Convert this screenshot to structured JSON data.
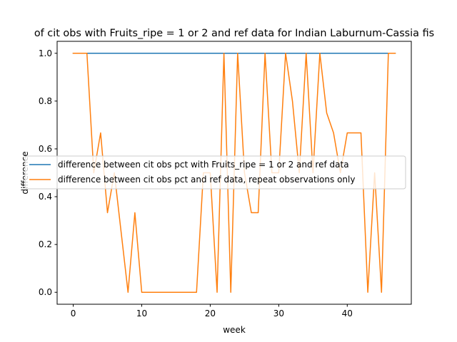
{
  "chart_data": {
    "type": "line",
    "title": "of cit obs with Fruits_ripe = 1 or 2 and ref data for Indian Laburnum-Cassia fis",
    "xlabel": "week",
    "ylabel": "difference",
    "xlim": [
      -2.35,
      49.35
    ],
    "ylim": [
      -0.05,
      1.05
    ],
    "xticks": [
      0,
      10,
      20,
      30,
      40
    ],
    "yticks": [
      0.0,
      0.2,
      0.4,
      0.6,
      0.8,
      1.0
    ],
    "xtick_labels": [
      "0",
      "10",
      "20",
      "30",
      "40"
    ],
    "ytick_labels": [
      "0.0",
      "0.2",
      "0.4",
      "0.6",
      "0.8",
      "1.0"
    ],
    "grid": false,
    "legend_position": "center-right",
    "series": [
      {
        "name": "difference between cit obs pct with Fruits_ripe = 1 or 2 and ref data",
        "color": "#1f77b4",
        "x": [
          0,
          47
        ],
        "values": [
          1.0,
          1.0
        ]
      },
      {
        "name": "difference between cit obs pct and ref data, repeat observations only",
        "color": "#ff7f0e",
        "x": [
          0,
          1,
          2,
          3,
          4,
          5,
          6,
          7,
          8,
          9,
          10,
          11,
          12,
          13,
          14,
          15,
          16,
          17,
          18,
          19,
          20,
          21,
          22,
          23,
          24,
          25,
          26,
          27,
          28,
          29,
          30,
          31,
          32,
          33,
          34,
          35,
          36,
          37,
          38,
          39,
          40,
          41,
          42,
          43,
          44,
          45,
          46,
          47
        ],
        "values": [
          1.0,
          1.0,
          1.0,
          0.5,
          0.667,
          0.333,
          0.5,
          0.25,
          0.0,
          0.333,
          0.0,
          0.0,
          0.0,
          0.0,
          0.0,
          0.0,
          0.0,
          0.0,
          0.0,
          0.5,
          0.5,
          0.0,
          1.0,
          0.0,
          1.0,
          0.5,
          0.333,
          0.333,
          1.0,
          0.5,
          0.5,
          1.0,
          0.8,
          0.5,
          1.0,
          0.5,
          1.0,
          0.75,
          0.667,
          0.5,
          0.667,
          0.667,
          0.667,
          0.0,
          0.5,
          0.0,
          1.0,
          1.0
        ]
      }
    ]
  }
}
